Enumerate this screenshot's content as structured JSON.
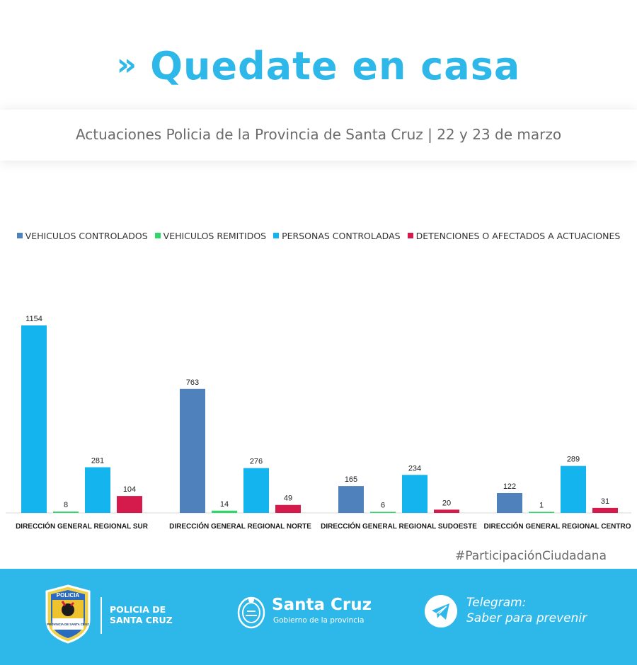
{
  "headline": {
    "chevron": "»",
    "text": "Quedate en casa"
  },
  "subtitle": "Actuaciones Policia de la Provincia de Santa Cruz | 22 y 23 de marzo",
  "hashtag": "#ParticipaciónCiudadana",
  "colors": {
    "brand": "#2eb8ea",
    "vehiculos_controlados": "#4f81bd",
    "vehiculos_remitidos": "#2fd76a",
    "personas_controladas": "#14b4ef",
    "detenciones": "#d41b4b"
  },
  "chart_data": {
    "type": "bar",
    "categories": [
      "DIRECCIÓN GENERAL REGIONAL SUR",
      "DIRECCIÓN GENERAL REGIONAL NORTE",
      "DIRECCIÓN GENERAL REGIONAL SUDOESTE",
      "DIRECCIÓN GENERAL REGIONAL CENTRO"
    ],
    "series": [
      {
        "name": "VEHICULOS CONTROLADOS",
        "color": "#4f81bd",
        "values": [
          1154,
          763,
          165,
          122
        ]
      },
      {
        "name": "VEHICULOS REMITIDOS",
        "color": "#2fd76a",
        "values": [
          8,
          14,
          6,
          1
        ]
      },
      {
        "name": "PERSONAS CONTROLADAS",
        "color": "#14b4ef",
        "values": [
          281,
          276,
          234,
          289
        ]
      },
      {
        "name": "DETENCIONES O AFECTADOS A ACTUACIONES",
        "color": "#d41b4b",
        "values": [
          104,
          49,
          20,
          31
        ]
      }
    ],
    "bar_color_overrides": [
      {
        "series": 0,
        "category": 0,
        "color": "#14b4ef"
      }
    ],
    "ylim": [
      0,
      1154
    ],
    "grid": false,
    "legend_position": "top-center",
    "data_labels": true
  },
  "footer": {
    "police_line1": "POLICIA DE",
    "police_line2": "SANTA CRUZ",
    "badge_top_text": "POLICIA",
    "badge_bottom_text": "PROVINCIA DE SANTA CRUZ",
    "sc_title": "Santa Cruz",
    "sc_sub": "Gobierno de la provincia",
    "telegram_line1": "Telegram:",
    "telegram_line2": "Saber para prevenir",
    "icons": [
      "police-badge-icon",
      "province-seal-icon",
      "telegram-icon"
    ]
  }
}
